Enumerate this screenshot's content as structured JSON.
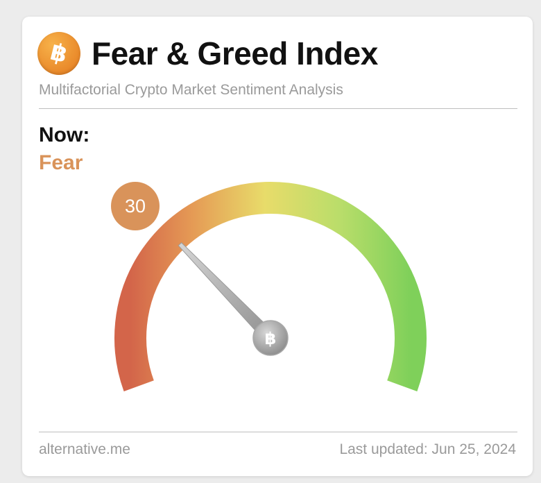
{
  "header": {
    "logo_glyph": "฿",
    "logo_icon": "bitcoin-icon",
    "title": "Fear & Greed Index",
    "subtitle": "Multifactorial Crypto Market Sentiment Analysis"
  },
  "status": {
    "now_label": "Now:",
    "classification": "Fear",
    "classification_color": "#d9935a"
  },
  "gauge": {
    "value": 30,
    "value_label": "30",
    "min": 0,
    "max": 100,
    "hub_glyph": "฿",
    "hub_icon": "bitcoin-icon",
    "colors": {
      "extreme_fear": "#d3654a",
      "fear": "#e59a55",
      "neutral": "#e8dc6a",
      "greed": "#b9dd6a",
      "extreme_greed": "#7fd05a"
    }
  },
  "footer": {
    "source": "alternative.me",
    "last_updated": "Last updated: Jun 25, 2024"
  }
}
